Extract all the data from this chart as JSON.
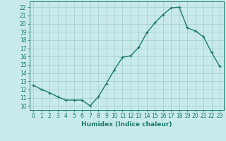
{
  "x": [
    0,
    1,
    2,
    3,
    4,
    5,
    6,
    7,
    8,
    9,
    10,
    11,
    12,
    13,
    14,
    15,
    16,
    17,
    18,
    19,
    20,
    21,
    22,
    23
  ],
  "y": [
    12.5,
    12.0,
    11.6,
    11.1,
    10.7,
    10.7,
    10.7,
    10.0,
    11.1,
    12.7,
    14.4,
    15.9,
    16.1,
    17.1,
    18.9,
    20.1,
    21.1,
    21.9,
    22.0,
    19.5,
    19.1,
    18.4,
    16.5,
    14.8
  ],
  "line_color": "#1a7a6e",
  "marker": "+",
  "bg_color": "#c8eaea",
  "grid_color": "#a0cccc",
  "xlabel": "Humidex (Indice chaleur)",
  "ylabel_ticks": [
    10,
    11,
    12,
    13,
    14,
    15,
    16,
    17,
    18,
    19,
    20,
    21,
    22
  ],
  "ylim": [
    9.5,
    22.7
  ],
  "xlim": [
    -0.5,
    23.5
  ],
  "tick_fontsize": 5.5,
  "xlabel_fontsize": 6.5,
  "linewidth": 1.0
}
